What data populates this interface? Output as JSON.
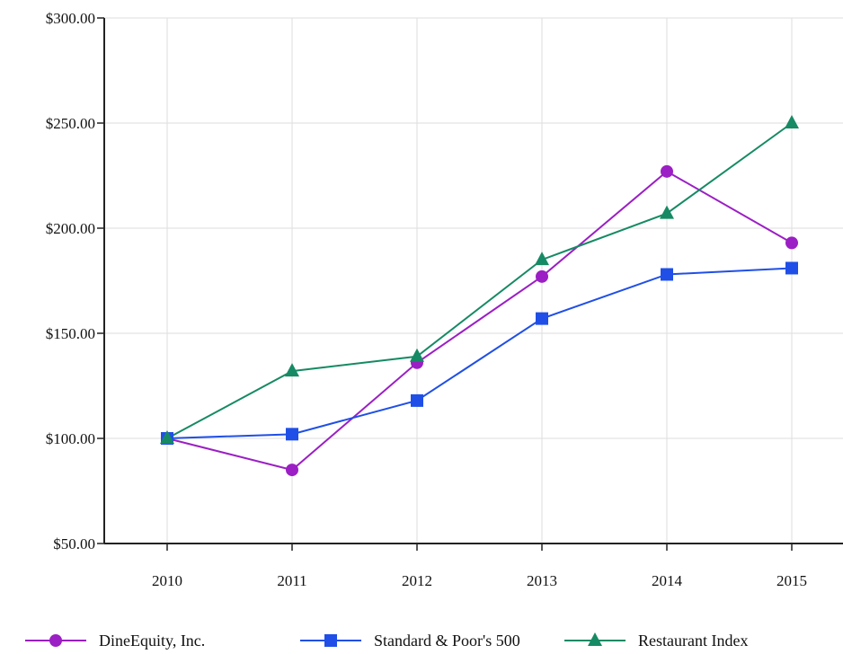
{
  "chart_data": {
    "type": "line",
    "title": "",
    "xlabel": "",
    "ylabel": "",
    "categories": [
      "2010",
      "2011",
      "2012",
      "2013",
      "2014",
      "2015"
    ],
    "ylim": [
      50,
      300
    ],
    "yticks": [
      "$50.00",
      "$100.00",
      "$150.00",
      "$200.00",
      "$250.00",
      "$300.00"
    ],
    "ytick_values": [
      50,
      100,
      150,
      200,
      250,
      300
    ],
    "grid": true,
    "legend_position": "bottom",
    "series": [
      {
        "name": "DineEquity, Inc.",
        "color": "#9b1fc4",
        "marker": "circle",
        "values": [
          100,
          85,
          136,
          177,
          227,
          193
        ]
      },
      {
        "name": "Standard & Poor's 500",
        "color": "#1f4fe6",
        "marker": "square",
        "values": [
          100,
          102,
          118,
          157,
          178,
          181
        ]
      },
      {
        "name": "Restaurant Index",
        "color": "#168a64",
        "marker": "triangle",
        "values": [
          100,
          132,
          139,
          185,
          207,
          250
        ]
      }
    ]
  }
}
